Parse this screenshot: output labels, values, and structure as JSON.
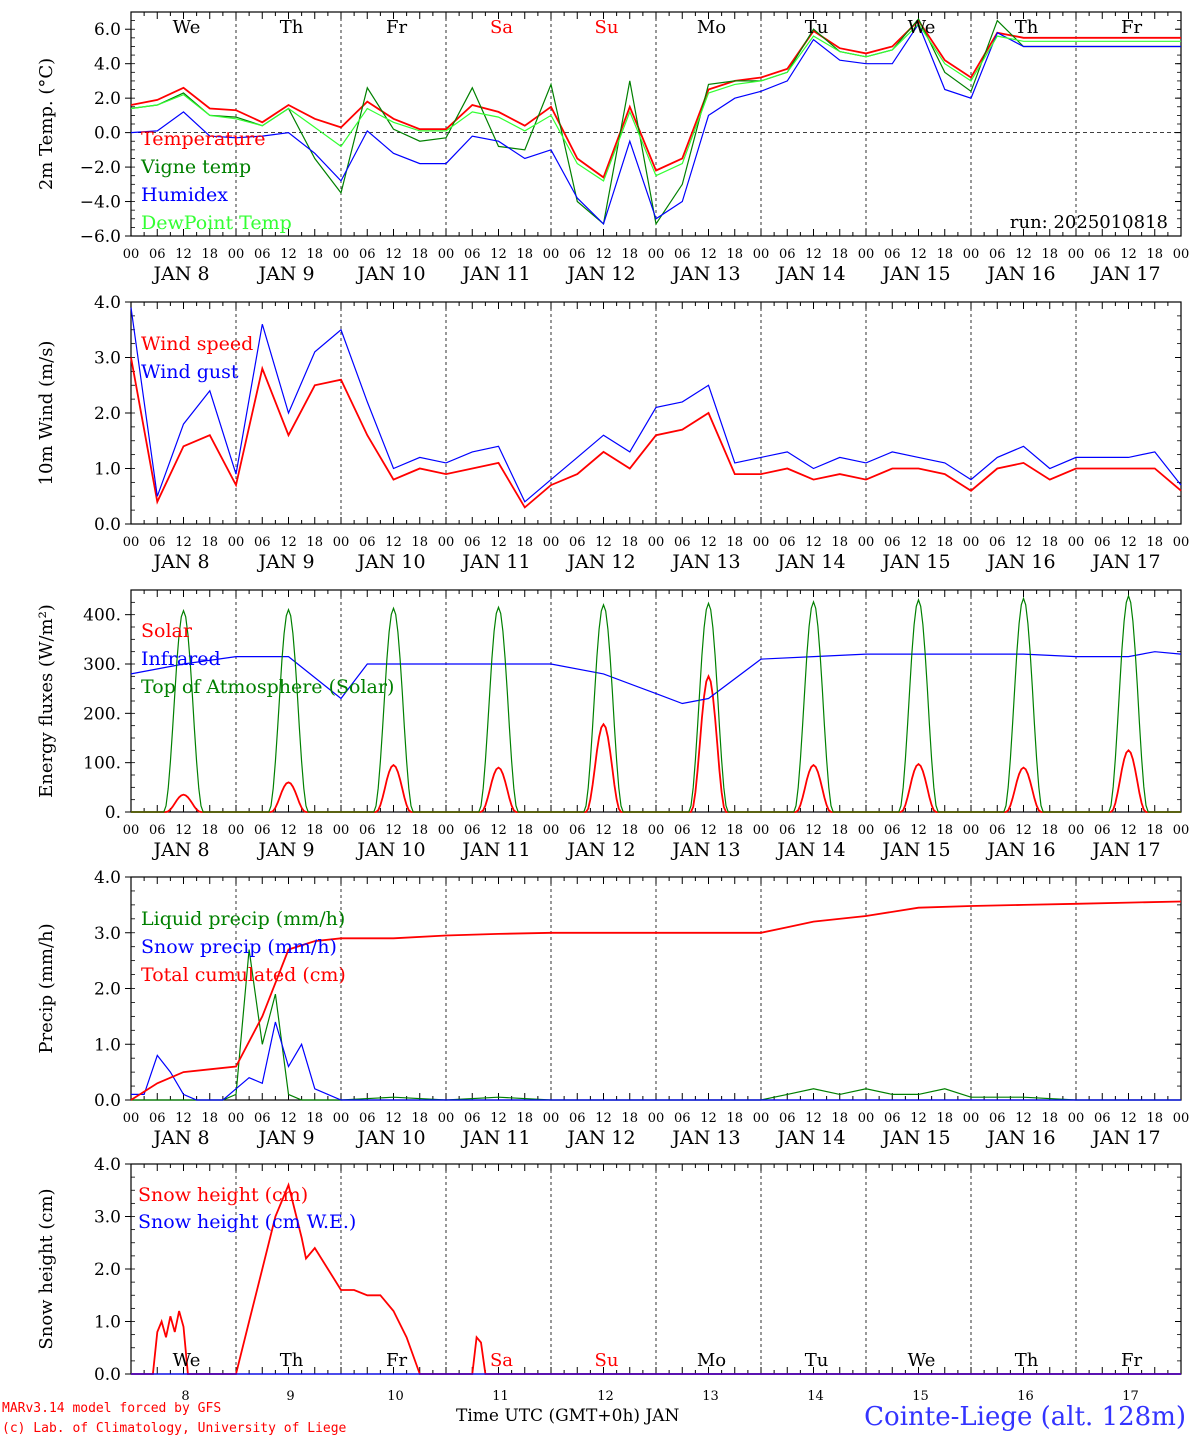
{
  "x_axis": {
    "hour_labels": [
      "00",
      "06",
      "12",
      "18"
    ],
    "dates": [
      "JAN  8",
      "JAN  9",
      "JAN 10",
      "JAN 11",
      "JAN 12",
      "JAN 13",
      "JAN 14",
      "JAN 15",
      "JAN 16",
      "JAN 17"
    ],
    "weekdays": [
      "We",
      "Th",
      "Fr",
      "Sa",
      "Su",
      "Mo",
      "Tu",
      "We",
      "Th",
      "Fr"
    ],
    "weekend_flags": [
      false,
      false,
      false,
      true,
      true,
      false,
      false,
      false,
      false,
      false
    ],
    "bottom_day_numbers": [
      "8",
      "9",
      "10",
      "11",
      "12",
      "13",
      "14",
      "15",
      "16",
      "17"
    ],
    "title": "Time UTC (GMT+0h) JAN",
    "days_span": 10
  },
  "colors": {
    "red": "#ff0000",
    "dark_green": "#008000",
    "blue": "#0000ff",
    "light_green": "#33ff33",
    "title_blue": "#3333ff"
  },
  "footer": {
    "model_line": "MARv3.14 model forced by GFS",
    "credit_line": "(c) Lab. of Climatology, University of Liege",
    "station": "Cointe-Liege (alt. 128m)"
  },
  "chart_data": [
    {
      "id": "temperature",
      "type": "line",
      "ylabel": "2m Temp. (°C)",
      "ylim": [
        -6,
        7
      ],
      "yticks": [
        -6,
        -4,
        -2,
        0,
        2,
        4,
        6
      ],
      "ytick_labels": [
        "−6.0",
        "−4.0",
        "−2.0",
        "0.0",
        "2.0",
        "4.0",
        "6.0"
      ],
      "zero_line": true,
      "annotation": "run: 2025010818",
      "x_unit": "hours since Jan 8 00 UTC",
      "series": [
        {
          "name": "Temperature",
          "color": "#ff0000",
          "x": [
            0,
            6,
            12,
            18,
            24,
            30,
            36,
            42,
            48,
            54,
            60,
            66,
            72,
            78,
            84,
            90,
            96,
            102,
            108,
            114,
            120,
            126,
            132,
            138,
            144,
            150,
            156,
            162,
            168,
            174,
            180,
            186,
            192,
            198,
            204,
            210,
            216,
            222,
            228,
            234,
            240
          ],
          "values": [
            1.6,
            1.9,
            2.6,
            1.4,
            1.3,
            0.6,
            1.6,
            0.8,
            0.3,
            1.8,
            0.8,
            0.2,
            0.2,
            1.6,
            1.2,
            0.4,
            1.5,
            -1.5,
            -2.6,
            1.5,
            -2.2,
            -1.5,
            2.5,
            3.0,
            3.2,
            3.7,
            5.9,
            4.9,
            4.6,
            5.0,
            6.5,
            4.2,
            3.2,
            5.8,
            5.5,
            5.5,
            5.5,
            5.5,
            5.5,
            5.5,
            5.5
          ]
        },
        {
          "name": "Vigne temp",
          "color": "#008000",
          "x": [
            0,
            6,
            12,
            18,
            24,
            30,
            36,
            42,
            48,
            54,
            60,
            66,
            72,
            78,
            84,
            90,
            96,
            102,
            108,
            114,
            120,
            126,
            132,
            138,
            144,
            150,
            156,
            162,
            168,
            174,
            180,
            186,
            192,
            198,
            204,
            210,
            216,
            222,
            228,
            234,
            240
          ],
          "values": [
            1.4,
            1.6,
            2.3,
            1.0,
            0.9,
            0.4,
            1.4,
            -1.5,
            -3.5,
            2.6,
            0.2,
            -0.5,
            -0.3,
            2.6,
            -0.8,
            -1.0,
            2.8,
            -4.0,
            -5.3,
            3.0,
            -5.3,
            -3.0,
            2.8,
            3.0,
            3.0,
            3.5,
            6.0,
            4.7,
            4.4,
            4.8,
            6.6,
            3.5,
            2.4,
            6.5,
            5.0,
            5.0,
            5.0,
            5.0,
            5.0,
            5.0,
            5.0
          ]
        },
        {
          "name": "Humidex",
          "color": "#0000ff",
          "x": [
            0,
            6,
            12,
            18,
            24,
            30,
            36,
            42,
            48,
            54,
            60,
            66,
            72,
            78,
            84,
            90,
            96,
            102,
            108,
            114,
            120,
            126,
            132,
            138,
            144,
            150,
            156,
            162,
            168,
            174,
            180,
            186,
            192,
            198,
            204,
            210,
            216,
            222,
            228,
            234,
            240
          ],
          "values": [
            0.0,
            0.1,
            1.2,
            -0.2,
            -0.3,
            -0.2,
            0.0,
            -1.2,
            -2.8,
            0.1,
            -1.2,
            -1.8,
            -1.8,
            -0.2,
            -0.5,
            -1.5,
            -1.0,
            -3.8,
            -5.3,
            -0.5,
            -5.0,
            -4.0,
            1.0,
            2.0,
            2.4,
            3.0,
            5.4,
            4.2,
            4.0,
            4.0,
            6.3,
            2.5,
            2.0,
            5.8,
            5.0,
            5.0,
            5.0,
            5.0,
            5.0,
            5.0,
            5.0
          ]
        },
        {
          "name": "DewPoint Temp",
          "color": "#33ff33",
          "x": [
            0,
            6,
            12,
            18,
            24,
            30,
            36,
            42,
            48,
            54,
            60,
            66,
            72,
            78,
            84,
            90,
            96,
            102,
            108,
            114,
            120,
            126,
            132,
            138,
            144,
            150,
            156,
            162,
            168,
            174,
            180,
            186,
            192,
            198,
            204,
            210,
            216,
            222,
            228,
            234,
            240
          ],
          "values": [
            1.4,
            1.6,
            2.2,
            1.0,
            0.8,
            0.4,
            1.4,
            0.3,
            -0.8,
            1.4,
            0.6,
            0.1,
            0.1,
            1.2,
            0.9,
            0.1,
            1.0,
            -1.8,
            -2.8,
            1.2,
            -2.5,
            -1.8,
            2.3,
            2.8,
            3.0,
            3.5,
            5.6,
            4.7,
            4.4,
            4.8,
            6.3,
            4.0,
            3.0,
            5.6,
            5.3,
            5.3,
            5.3,
            5.3,
            5.3,
            5.3,
            5.3
          ]
        }
      ]
    },
    {
      "id": "wind",
      "type": "line",
      "ylabel": "10m Wind (m/s)",
      "ylim": [
        0,
        4
      ],
      "yticks": [
        0,
        1,
        2,
        3,
        4
      ],
      "ytick_labels": [
        "0.0",
        "1.0",
        "2.0",
        "3.0",
        "4.0"
      ],
      "x_unit": "hours since Jan 8 00 UTC",
      "series": [
        {
          "name": "Wind speed",
          "color": "#ff0000",
          "x": [
            0,
            6,
            12,
            18,
            24,
            30,
            36,
            42,
            48,
            54,
            60,
            66,
            72,
            78,
            84,
            90,
            96,
            102,
            108,
            114,
            120,
            126,
            132,
            138,
            144,
            150,
            156,
            162,
            168,
            174,
            180,
            186,
            192,
            198,
            204,
            210,
            216,
            222,
            228,
            234,
            240
          ],
          "values": [
            3.0,
            0.4,
            1.4,
            1.6,
            0.7,
            2.8,
            1.6,
            2.5,
            2.6,
            1.6,
            0.8,
            1.0,
            0.9,
            1.0,
            1.1,
            0.3,
            0.7,
            0.9,
            1.3,
            1.0,
            1.6,
            1.7,
            2.0,
            0.9,
            0.9,
            1.0,
            0.8,
            0.9,
            0.8,
            1.0,
            1.0,
            0.9,
            0.6,
            1.0,
            1.1,
            0.8,
            1.0,
            1.0,
            1.0,
            1.0,
            0.6
          ]
        },
        {
          "name": "Wind gust",
          "color": "#0000ff",
          "x": [
            0,
            6,
            12,
            18,
            24,
            30,
            36,
            42,
            48,
            54,
            60,
            66,
            72,
            78,
            84,
            90,
            96,
            102,
            108,
            114,
            120,
            126,
            132,
            138,
            144,
            150,
            156,
            162,
            168,
            174,
            180,
            186,
            192,
            198,
            204,
            210,
            216,
            222,
            228,
            234,
            240
          ],
          "values": [
            3.9,
            0.5,
            1.8,
            2.4,
            0.9,
            3.6,
            2.0,
            3.1,
            3.5,
            2.2,
            1.0,
            1.2,
            1.1,
            1.3,
            1.4,
            0.4,
            0.8,
            1.2,
            1.6,
            1.3,
            2.1,
            2.2,
            2.5,
            1.1,
            1.2,
            1.3,
            1.0,
            1.2,
            1.1,
            1.3,
            1.2,
            1.1,
            0.8,
            1.2,
            1.4,
            1.0,
            1.2,
            1.2,
            1.2,
            1.3,
            0.7
          ]
        }
      ]
    },
    {
      "id": "energy",
      "type": "line",
      "ylabel": "Energy fluxes (W/m²)",
      "ylim": [
        0,
        450
      ],
      "yticks": [
        0,
        100,
        200,
        300,
        400
      ],
      "ytick_labels": [
        "0.",
        "100.",
        "200.",
        "300.",
        "400."
      ],
      "x_unit": "hours since Jan 8 00 UTC",
      "series": [
        {
          "name": "Solar",
          "color": "#ff0000",
          "peaks_x": [
            12,
            36,
            60,
            84,
            108,
            132,
            156,
            180,
            204,
            228
          ],
          "peaks": [
            35,
            60,
            95,
            90,
            178,
            275,
            95,
            97,
            90,
            125
          ]
        },
        {
          "name": "Infrared",
          "color": "#0000ff",
          "x": [
            0,
            12,
            24,
            36,
            48,
            54,
            60,
            72,
            84,
            96,
            108,
            120,
            126,
            132,
            144,
            156,
            168,
            180,
            192,
            204,
            216,
            228,
            234,
            240
          ],
          "values": [
            280,
            300,
            315,
            315,
            230,
            300,
            300,
            300,
            300,
            300,
            280,
            240,
            220,
            230,
            310,
            315,
            320,
            320,
            320,
            320,
            315,
            315,
            325,
            320
          ]
        },
        {
          "name": "Top of Atmosphere (Solar)",
          "color": "#008000",
          "peaks_x": [
            12,
            36,
            60,
            84,
            108,
            132,
            156,
            180,
            204,
            228
          ],
          "peaks": [
            408,
            410,
            413,
            415,
            420,
            423,
            426,
            430,
            433,
            438
          ]
        }
      ]
    },
    {
      "id": "precip",
      "type": "line",
      "ylabel": "Precip (mm/h)",
      "ylim": [
        0,
        4
      ],
      "yticks": [
        0,
        1,
        2,
        3,
        4
      ],
      "ytick_labels": [
        "0.0",
        "1.0",
        "2.0",
        "3.0",
        "4.0"
      ],
      "x_unit": "hours since Jan 8 00 UTC",
      "series": [
        {
          "name": "Liquid precip (mm/h)",
          "color": "#008000",
          "x": [
            0,
            3,
            6,
            9,
            12,
            15,
            18,
            21,
            24,
            27,
            30,
            33,
            36,
            39,
            42,
            45,
            48,
            60,
            72,
            84,
            96,
            108,
            120,
            144,
            150,
            156,
            162,
            168,
            174,
            180,
            186,
            192,
            204,
            216,
            228,
            240
          ],
          "values": [
            0,
            0,
            0,
            0,
            0,
            0,
            0,
            0,
            0.1,
            2.7,
            1.0,
            1.9,
            0.1,
            0,
            0,
            0,
            0,
            0.05,
            0,
            0.05,
            0,
            0,
            0,
            0,
            0.1,
            0.2,
            0.1,
            0.2,
            0.1,
            0.1,
            0.2,
            0.05,
            0.05,
            0,
            0,
            0
          ]
        },
        {
          "name": "Snow precip (mm/h)",
          "color": "#0000ff",
          "x": [
            0,
            3,
            6,
            9,
            12,
            15,
            18,
            21,
            24,
            27,
            30,
            33,
            36,
            39,
            42,
            45,
            48,
            60,
            72,
            84,
            96,
            108,
            120,
            144,
            168,
            192,
            216,
            240
          ],
          "values": [
            0.1,
            0.1,
            0.8,
            0.5,
            0.1,
            0,
            0,
            0,
            0.2,
            0.4,
            0.3,
            1.4,
            0.6,
            1.0,
            0.2,
            0.1,
            0,
            0,
            0,
            0,
            0,
            0,
            0,
            0,
            0,
            0,
            0,
            0
          ]
        },
        {
          "name": "Total cumulated (cm)",
          "color": "#ff0000",
          "x": [
            0,
            6,
            12,
            18,
            24,
            30,
            36,
            42,
            48,
            60,
            72,
            84,
            96,
            108,
            120,
            144,
            150,
            156,
            168,
            180,
            192,
            204,
            216,
            228,
            240
          ],
          "values": [
            0,
            0.3,
            0.5,
            0.55,
            0.6,
            1.5,
            2.7,
            2.85,
            2.9,
            2.9,
            2.95,
            2.98,
            3.0,
            3.0,
            3.0,
            3.0,
            3.1,
            3.2,
            3.3,
            3.45,
            3.48,
            3.5,
            3.52,
            3.54,
            3.56
          ]
        }
      ]
    },
    {
      "id": "snow",
      "type": "line",
      "ylabel": "Snow height (cm)",
      "ylim": [
        0,
        4
      ],
      "yticks": [
        0,
        1,
        2,
        3,
        4
      ],
      "ytick_labels": [
        "0.0",
        "1.0",
        "2.0",
        "3.0",
        "4.0"
      ],
      "x_unit": "hours since Jan 8 00 UTC",
      "series": [
        {
          "name": "Snow height (cm)",
          "color": "#ff0000",
          "x": [
            0,
            5,
            6,
            7,
            8,
            9,
            10,
            11,
            12,
            13,
            18,
            24,
            27,
            30,
            33,
            36,
            39,
            40,
            42,
            45,
            48,
            51,
            54,
            57,
            60,
            63,
            66,
            72,
            78,
            79,
            80,
            81,
            84,
            90,
            240
          ],
          "values": [
            0,
            0,
            0.8,
            1.0,
            0.7,
            1.1,
            0.8,
            1.2,
            0.9,
            0,
            0,
            0,
            1.0,
            2.0,
            3.0,
            3.6,
            2.6,
            2.2,
            2.4,
            2.0,
            1.6,
            1.6,
            1.5,
            1.5,
            1.2,
            0.7,
            0,
            0,
            0,
            0.7,
            0.6,
            0,
            0,
            0,
            0
          ]
        },
        {
          "name": "Snow height (cm W.E.)",
          "color": "#0000ff",
          "x": [
            0,
            240
          ],
          "values": [
            0,
            0
          ]
        }
      ]
    }
  ]
}
